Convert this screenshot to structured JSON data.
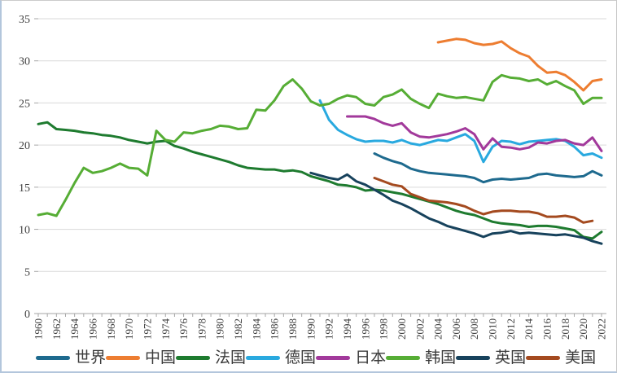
{
  "figure": {
    "background": "#ffffff",
    "gridline_color": "#d9d9d9",
    "axis_color": "#a6a6a6",
    "tick_label_color": "#404040"
  },
  "chart_data": {
    "type": "line",
    "title": "",
    "xlabel": "",
    "ylabel": "",
    "ylim": [
      0,
      35
    ],
    "y_ticks": [
      0,
      5,
      10,
      15,
      20,
      25,
      30,
      35
    ],
    "x_start_year": 1960,
    "x_end_year": 2022,
    "x_tick_labels": [
      "1960",
      "1962",
      "1964",
      "1966",
      "1968",
      "1970",
      "1972",
      "1974",
      "1976",
      "1978",
      "1980",
      "1982",
      "1984",
      "1986",
      "1988",
      "1990",
      "1992",
      "1994",
      "1996",
      "1998",
      "2000",
      "2002",
      "2004",
      "2006",
      "2008",
      "2010",
      "2012",
      "2014",
      "2016",
      "2018",
      "2020",
      "2022"
    ],
    "grid": true,
    "legend_position": "bottom",
    "series": [
      {
        "key": "world",
        "name": "世界",
        "color": "#1E6A8E",
        "start_year": 1997,
        "values": [
          19.0,
          18.5,
          18.1,
          17.8,
          17.2,
          16.9,
          16.7,
          16.6,
          16.5,
          16.4,
          16.3,
          16.1,
          15.6,
          15.9,
          16.0,
          15.9,
          16.0,
          16.1,
          16.5,
          16.6,
          16.4,
          16.3,
          16.2,
          16.3,
          16.9,
          16.4
        ]
      },
      {
        "key": "china",
        "name": "中国",
        "color": "#ED7D31",
        "start_year": 2004,
        "values": [
          32.2,
          32.4,
          32.6,
          32.5,
          32.1,
          31.9,
          32.0,
          32.3,
          31.5,
          30.9,
          30.5,
          29.4,
          28.6,
          28.7,
          28.3,
          27.5,
          26.5,
          27.6,
          27.8
        ]
      },
      {
        "key": "france",
        "name": "法国",
        "color": "#1E7B2F",
        "start_year": 1960,
        "values": [
          22.5,
          22.7,
          21.9,
          21.8,
          21.7,
          21.5,
          21.4,
          21.2,
          21.1,
          20.9,
          20.6,
          20.4,
          20.2,
          20.4,
          20.5,
          19.9,
          19.6,
          19.2,
          18.9,
          18.6,
          18.3,
          18.0,
          17.6,
          17.3,
          17.2,
          17.1,
          17.1,
          16.9,
          17.0,
          16.8,
          16.3,
          16.0,
          15.7,
          15.3,
          15.2,
          15.0,
          14.6,
          14.7,
          14.6,
          14.4,
          14.2,
          13.9,
          13.6,
          13.3,
          13.0,
          12.6,
          12.2,
          11.9,
          11.7,
          11.3,
          10.9,
          10.7,
          10.6,
          10.5,
          10.3,
          10.4,
          10.4,
          10.3,
          10.1,
          9.9,
          9.1,
          8.9,
          9.7
        ]
      },
      {
        "key": "germany",
        "name": "德国",
        "color": "#29A9DF",
        "start_year": 1991,
        "values": [
          25.3,
          23.0,
          21.8,
          21.2,
          20.7,
          20.4,
          20.5,
          20.5,
          20.3,
          20.6,
          20.2,
          20.0,
          20.3,
          20.6,
          20.5,
          20.9,
          21.3,
          20.5,
          18.0,
          19.8,
          20.5,
          20.4,
          20.1,
          20.4,
          20.5,
          20.6,
          20.7,
          20.5,
          19.8,
          18.8,
          19.0,
          18.5
        ]
      },
      {
        "key": "japan",
        "name": "日本",
        "color": "#A2399B",
        "start_year": 1994,
        "values": [
          23.4,
          23.4,
          23.4,
          23.1,
          22.6,
          22.3,
          22.6,
          21.5,
          21.0,
          20.9,
          21.1,
          21.3,
          21.6,
          22.0,
          21.3,
          19.5,
          20.8,
          19.8,
          19.7,
          19.5,
          19.7,
          20.3,
          20.2,
          20.5,
          20.6,
          20.2,
          20.0,
          20.9,
          19.3
        ]
      },
      {
        "key": "korea",
        "name": "韩国",
        "color": "#56AD35",
        "start_year": 1960,
        "values": [
          11.7,
          11.9,
          11.6,
          13.5,
          15.5,
          17.3,
          16.7,
          16.9,
          17.3,
          17.8,
          17.3,
          17.2,
          16.4,
          21.7,
          20.6,
          20.4,
          21.5,
          21.4,
          21.7,
          21.9,
          22.3,
          22.2,
          21.9,
          22.0,
          24.2,
          24.1,
          25.3,
          27.0,
          27.8,
          26.7,
          25.2,
          24.7,
          24.9,
          25.5,
          25.9,
          25.7,
          24.9,
          24.7,
          25.7,
          26.0,
          26.6,
          25.5,
          24.9,
          24.4,
          26.1,
          25.8,
          25.6,
          25.7,
          25.5,
          25.3,
          27.5,
          28.3,
          28.0,
          27.9,
          27.6,
          27.8,
          27.2,
          27.6,
          27.0,
          26.5,
          24.9,
          25.6,
          25.6
        ]
      },
      {
        "key": "uk",
        "name": "英国",
        "color": "#17425C",
        "start_year": 1990,
        "values": [
          16.7,
          16.4,
          16.1,
          15.9,
          16.5,
          15.7,
          15.3,
          14.7,
          14.1,
          13.4,
          13.0,
          12.5,
          11.9,
          11.3,
          10.9,
          10.4,
          10.1,
          9.8,
          9.5,
          9.1,
          9.5,
          9.6,
          9.8,
          9.5,
          9.6,
          9.5,
          9.4,
          9.3,
          9.4,
          9.2,
          9.0,
          8.6,
          8.3
        ]
      },
      {
        "key": "usa",
        "name": "美国",
        "color": "#A44A1F",
        "start_year": 1997,
        "values": [
          16.1,
          15.7,
          15.3,
          15.1,
          14.2,
          13.8,
          13.4,
          13.3,
          13.2,
          13.0,
          12.7,
          12.2,
          11.8,
          12.1,
          12.2,
          12.2,
          12.1,
          12.1,
          11.9,
          11.5,
          11.5,
          11.6,
          11.4,
          10.8,
          11.0
        ]
      }
    ]
  }
}
